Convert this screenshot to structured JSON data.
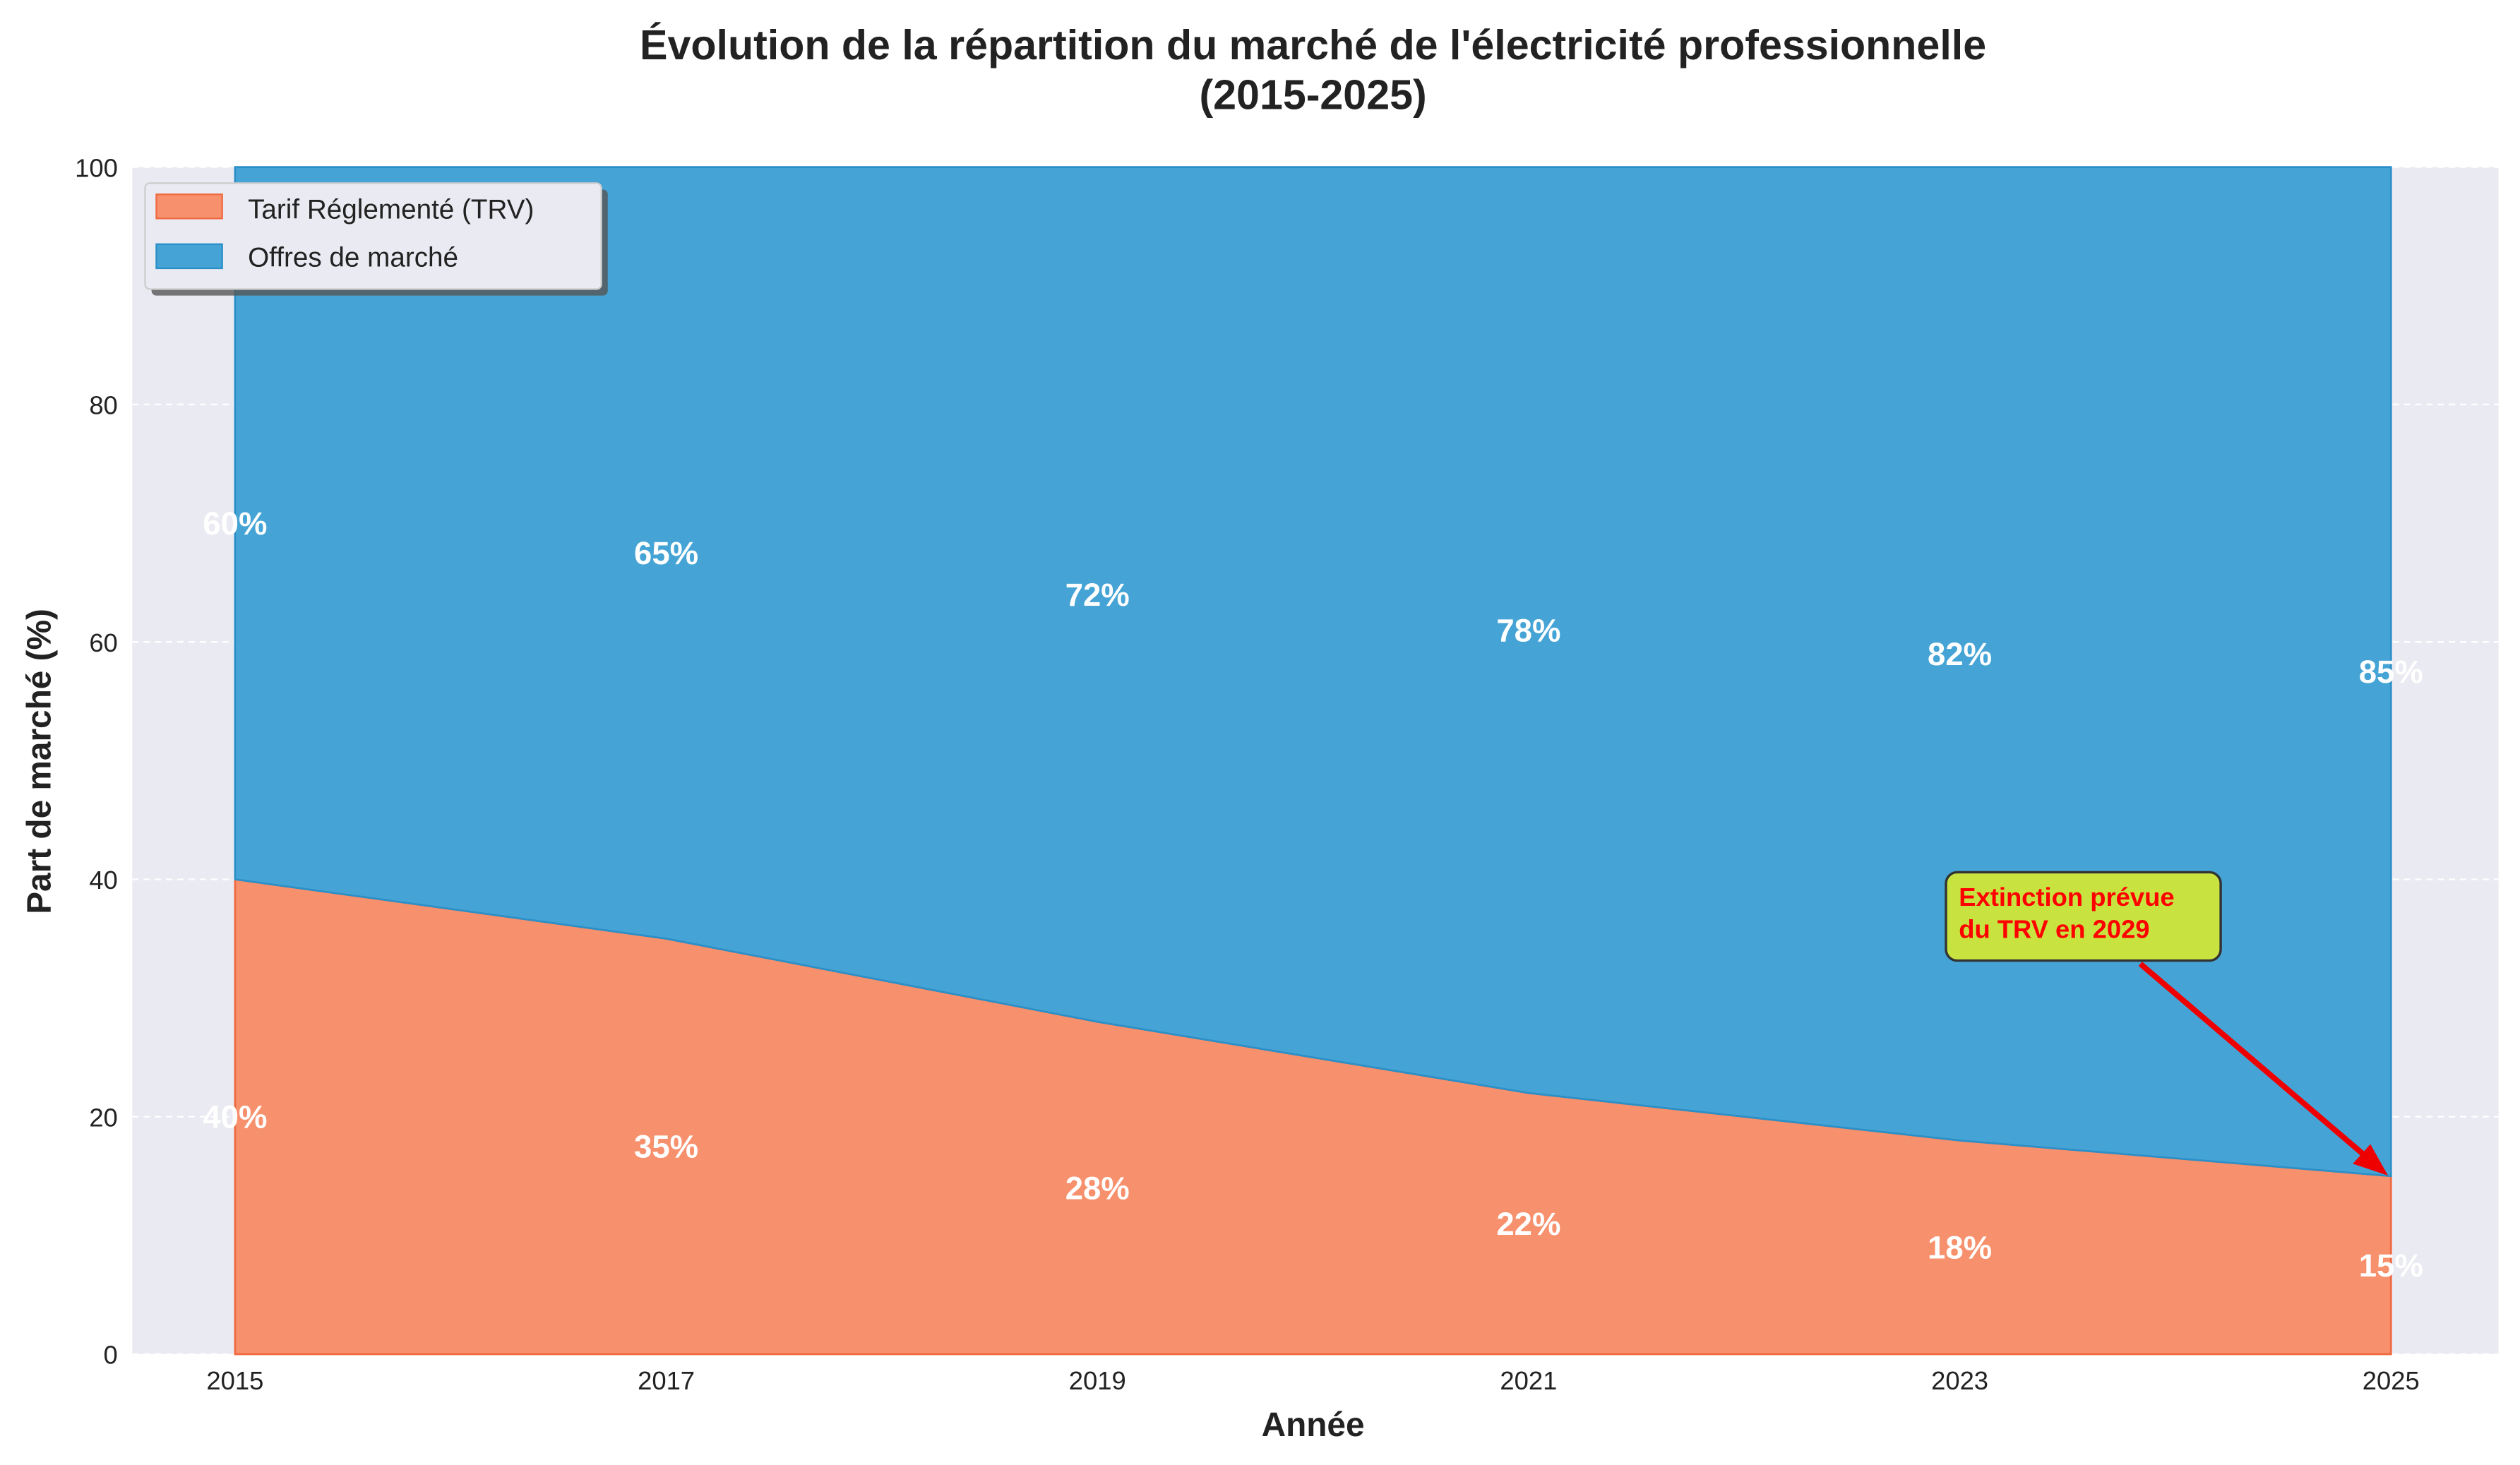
{
  "chart_data": {
    "type": "area",
    "stacked": true,
    "title": "Évolution de la répartition du marché de l'électricité professionnelle",
    "subtitle": "(2015-2025)",
    "xlabel": "Année",
    "ylabel": "Part de marché (%)",
    "x": [
      2015,
      2017,
      2019,
      2021,
      2023,
      2025
    ],
    "x_tick_labels": [
      "2015",
      "2017",
      "2019",
      "2021",
      "2023",
      "2025"
    ],
    "ylim": [
      0,
      100
    ],
    "y_ticks": [
      0,
      20,
      40,
      60,
      80,
      100
    ],
    "grid": true,
    "legend_position": "top-left",
    "series": [
      {
        "name": "Tarif Réglementé (TRV)",
        "values": [
          40,
          35,
          28,
          22,
          18,
          15
        ],
        "color": "#f7906c",
        "labels": [
          "40%",
          "35%",
          "28%",
          "22%",
          "18%",
          "15%"
        ]
      },
      {
        "name": "Offres de marché",
        "values": [
          60,
          65,
          72,
          78,
          82,
          85
        ],
        "color": "#45a4d5",
        "labels": [
          "60%",
          "65%",
          "72%",
          "78%",
          "82%",
          "85%"
        ]
      }
    ],
    "annotation": {
      "lines": [
        "Extinction prévue",
        "du TRV en 2029"
      ],
      "points_to": {
        "x": 2025,
        "y": 15
      },
      "text_color": "#ff0000",
      "box_color": "#c8e340"
    },
    "background_color": "#eaeaf2"
  }
}
